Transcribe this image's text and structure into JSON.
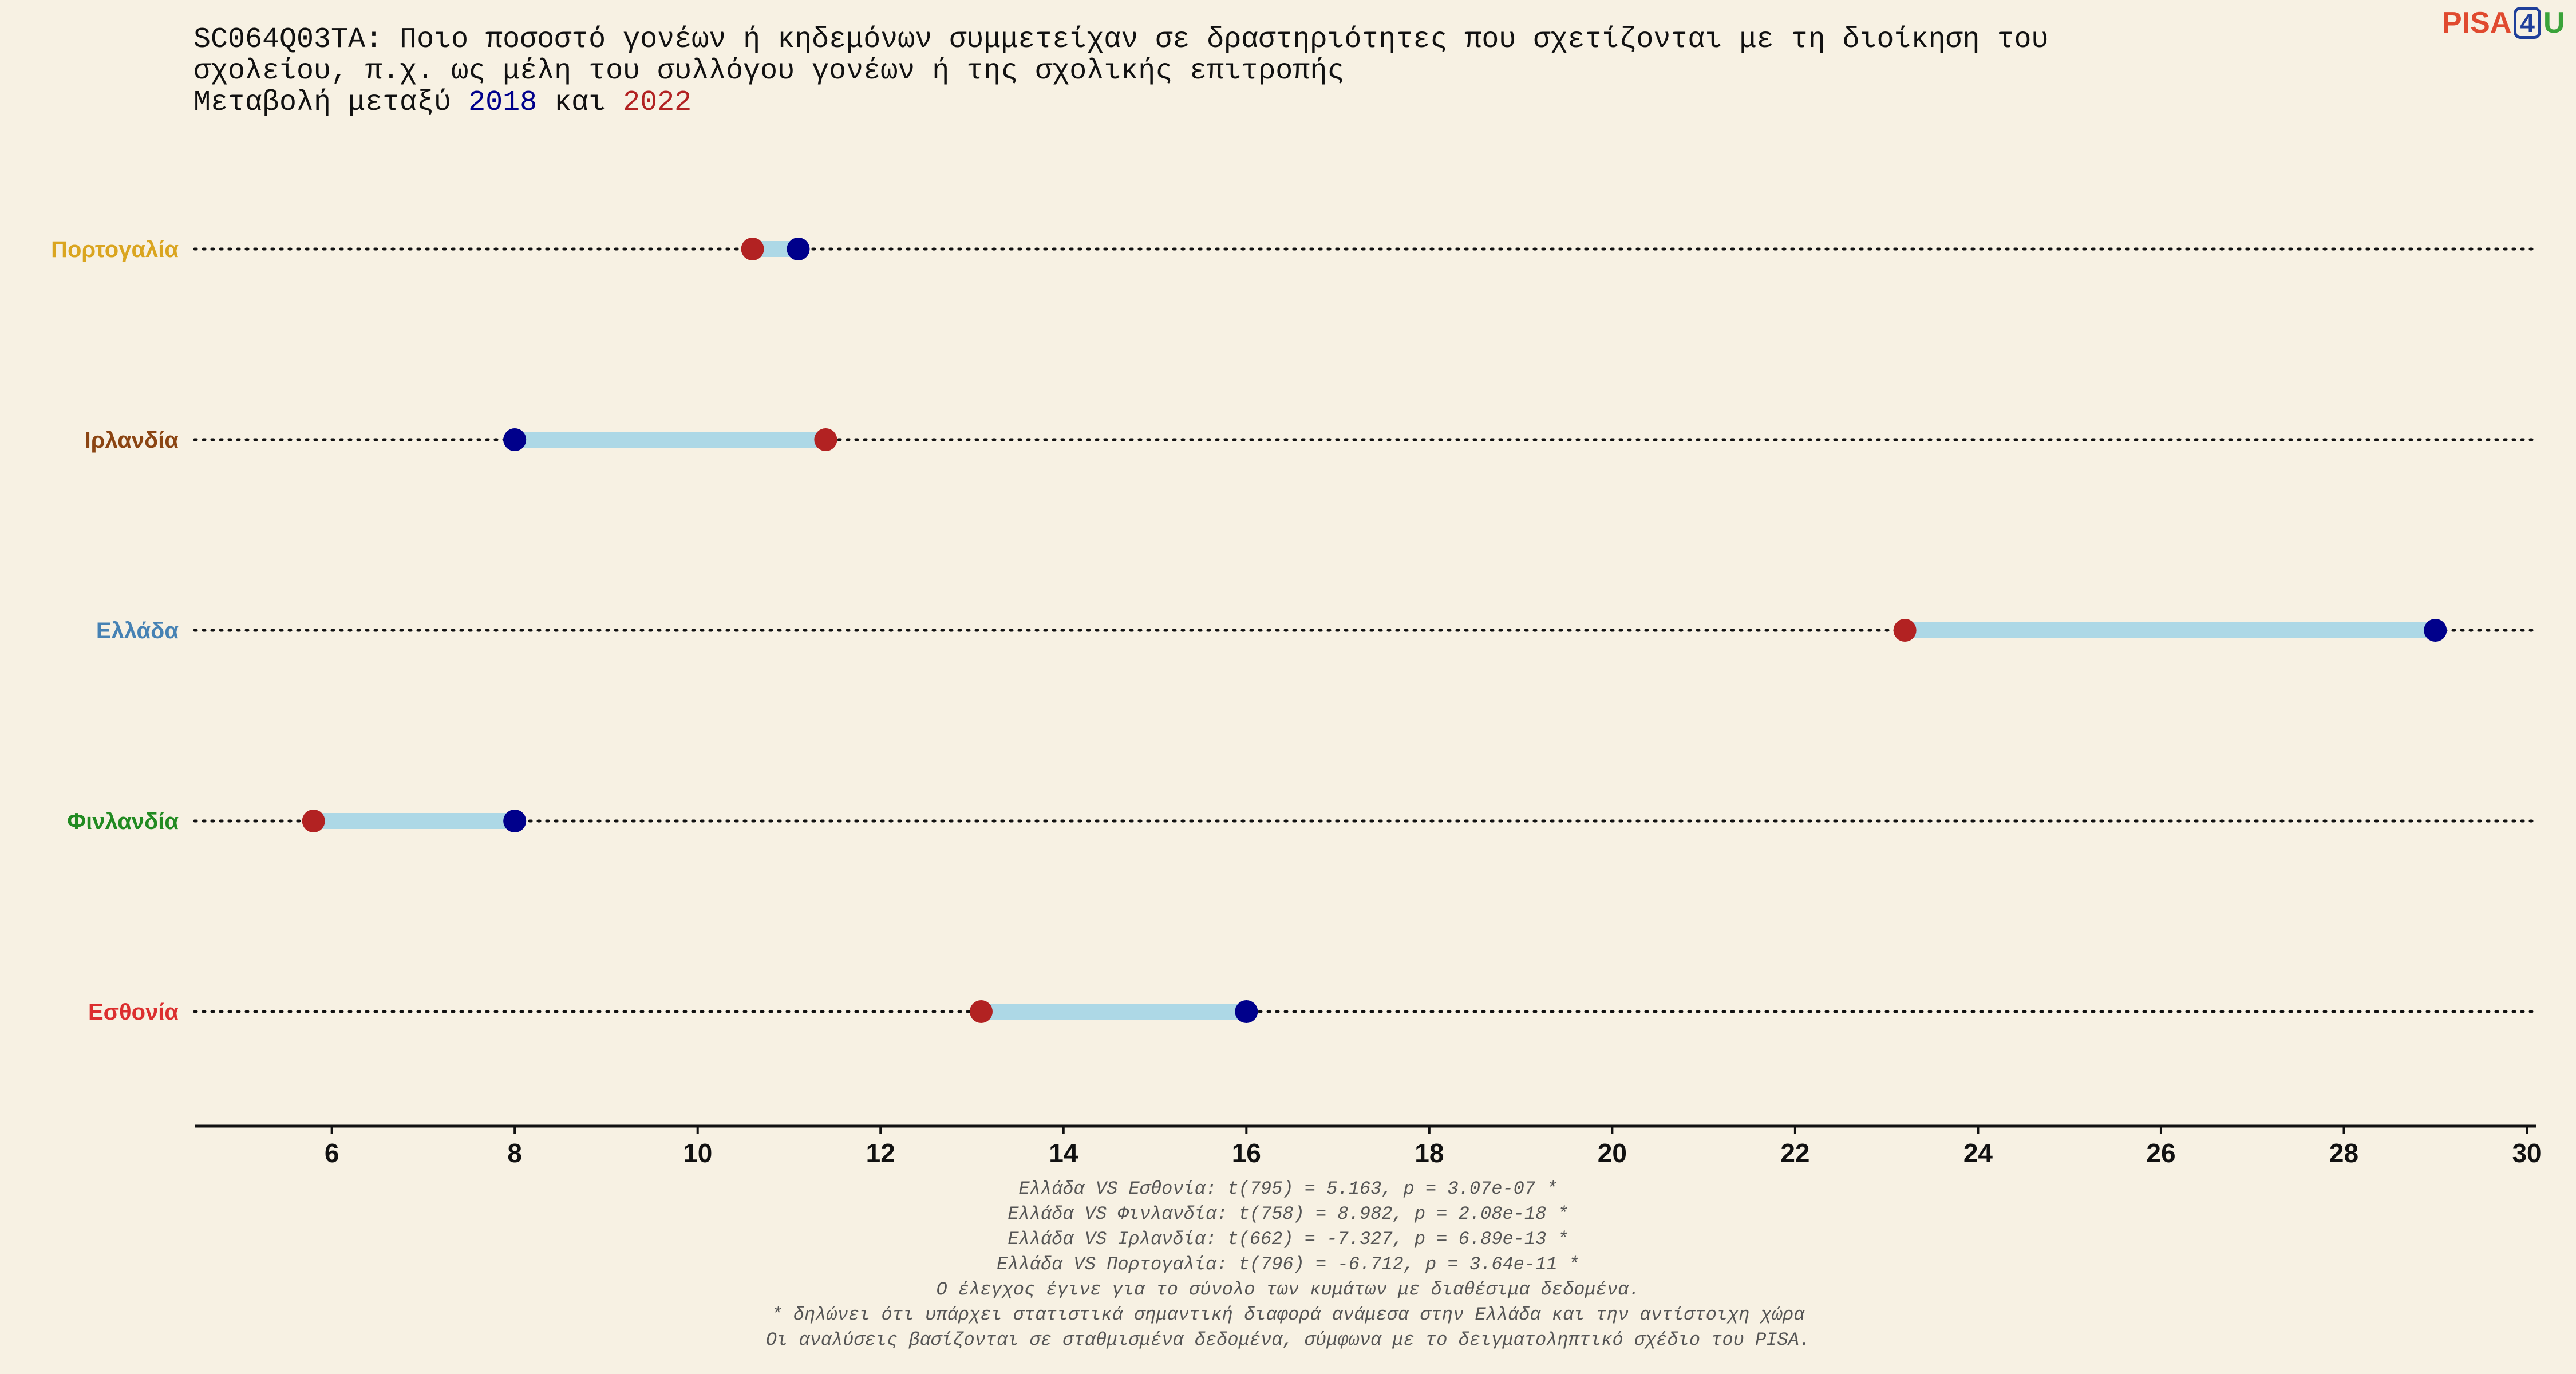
{
  "header": {
    "title_line1": "SC064Q03TA: Ποιο ποσοστό γονέων ή κηδεμόνων συμμετείχαν σε δραστηριότητες που σχετίζονται με τη διοίκηση του",
    "title_line2": "σχολείου, π.χ. ως μέλη του συλλόγου γονέων ή της σχολικής επιτροπής",
    "subtitle_prefix": "Μεταβολή μεταξύ ",
    "year_a": "2018",
    "subtitle_mid": " και ",
    "year_b": "2022"
  },
  "logo": {
    "part1": "PISA",
    "part2": "4",
    "part3": "U"
  },
  "colors": {
    "background": "#f7f1e3",
    "year_2018": "#00008b",
    "year_2022": "#b22222",
    "connector": "#add8e6"
  },
  "chart_data": {
    "type": "dumbbell",
    "xlim": [
      4.5,
      30.1
    ],
    "xticks": [
      6,
      8,
      10,
      12,
      14,
      16,
      18,
      20,
      22,
      24,
      26,
      28,
      30
    ],
    "grid": "dotted horizontal per category",
    "categories": [
      {
        "name": "Πορτογαλία",
        "label_color": "#daa520",
        "v2018": 11.1,
        "v2022": 10.6
      },
      {
        "name": "Ιρλανδία",
        "label_color": "#8b4513",
        "v2018": 8.0,
        "v2022": 11.4
      },
      {
        "name": "Ελλάδα",
        "label_color": "#4682b4",
        "v2018": 29.0,
        "v2022": 23.2
      },
      {
        "name": "Φινλανδία",
        "label_color": "#228b22",
        "v2018": 8.0,
        "v2022": 5.8
      },
      {
        "name": "Εσθονία",
        "label_color": "#dc2f2f",
        "v2018": 16.0,
        "v2022": 13.1
      }
    ]
  },
  "footnotes": [
    "Ελλάδα VS Εσθονία: t(795) = 5.163, p = 3.07e-07 *",
    "Ελλάδα VS Φινλανδία: t(758) = 8.982, p = 2.08e-18 *",
    "Ελλάδα VS Ιρλανδία: t(662) = -7.327, p = 6.89e-13 *",
    "Ελλάδα VS Πορτογαλία: t(796) = -6.712, p = 3.64e-11 *",
    "Ο έλεγχος έγινε για το σύνολο των κυμάτων με διαθέσιμα δεδομένα.",
    "* δηλώνει ότι υπάρχει στατιστικά σημαντική διαφορά ανάμεσα στην Ελλάδα και την αντίστοιχη χώρα",
    "Οι αναλύσεις βασίζονται σε σταθμισμένα δεδομένα, σύμφωνα με το δειγματοληπτικό σχέδιο του PISA."
  ]
}
